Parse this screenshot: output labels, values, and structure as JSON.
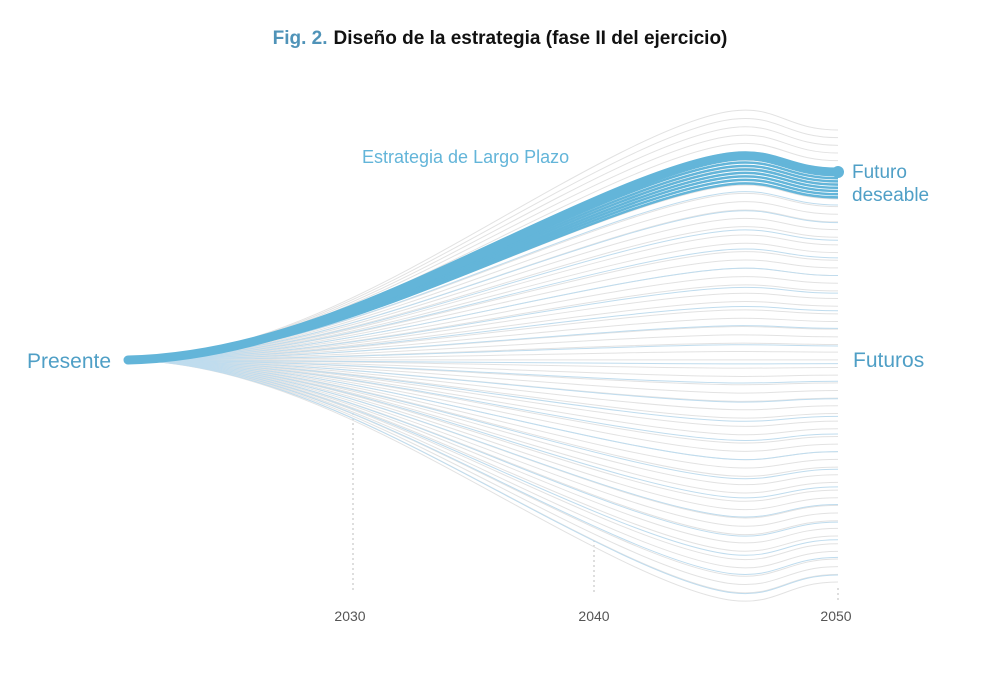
{
  "title": {
    "prefix": "Fig. 2.",
    "text": "Diseño de la estrategia (fase II del ejercicio)"
  },
  "labels": {
    "present": "Presente",
    "strategy": "Estrategia de Largo Plazo",
    "desired_line1": "Futuro",
    "desired_line2": "deseable",
    "futures": "Futuros"
  },
  "chart_data": {
    "type": "line",
    "x_ticks": [
      "2030",
      "2040",
      "2050"
    ],
    "bundle": {
      "grey_lines": 60,
      "blue_lines": 22,
      "strategy_lines": 8
    }
  },
  "colors": {
    "accent": "#63b5d9",
    "title_prefix": "#4f93b8",
    "title_text": "#111111",
    "grey_line": "#e2e2e2",
    "blue_line": "#bfdcee",
    "axis_text": "#555555",
    "guide": "#bdbdbd"
  }
}
